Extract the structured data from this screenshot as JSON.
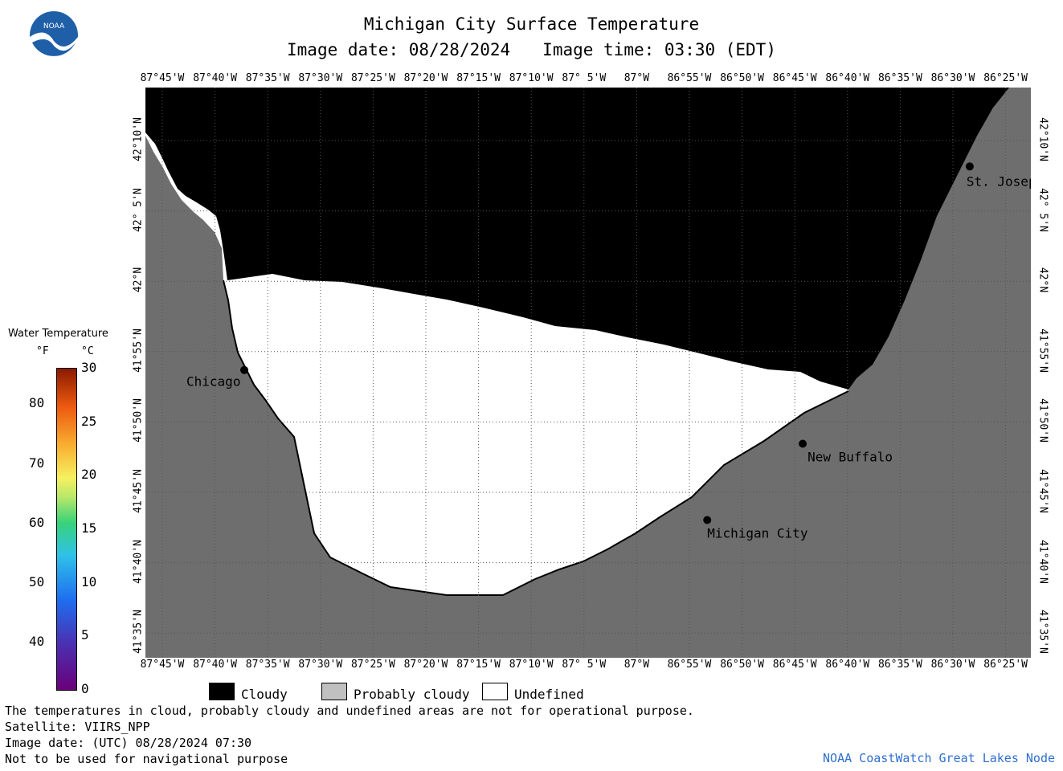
{
  "header": {
    "title": "Michigan City Surface Temperature",
    "image_date": "Image date: 08/28/2024",
    "image_time": "Image time: 03:30 (EDT)"
  },
  "logo": {
    "text": "NOAA",
    "icon": "noaa-logo-icon"
  },
  "map": {
    "lon_labels": [
      "87°45'W",
      "87°40'W",
      "87°35'W",
      "87°30'W",
      "87°25'W",
      "87°20'W",
      "87°15'W",
      "87°10'W",
      "87° 5'W",
      "87°W",
      "86°55'W",
      "86°50'W",
      "86°45'W",
      "86°40'W",
      "86°35'W",
      "86°30'W",
      "86°25'W"
    ],
    "lat_labels": [
      "42°10'N",
      "42° 5'N",
      "42°N",
      "41°55'N",
      "41°50'N",
      "41°45'N",
      "41°40'N",
      "41°35'N"
    ],
    "cities": [
      {
        "name": "Chicago",
        "lon": -87.627,
        "lat": 41.878
      },
      {
        "name": "Michigan City",
        "lon": -86.895,
        "lat": 41.707
      },
      {
        "name": "New Buffalo",
        "lon": -86.744,
        "lat": 41.794
      },
      {
        "name": "St. Joseph",
        "lon": -86.48,
        "lat": 42.11
      }
    ],
    "colors": {
      "cloudy": "#000000",
      "land": "#6e6e6e",
      "undefined": "#ffffff",
      "grid": "#555555"
    }
  },
  "legend": {
    "title": "Water Temperature",
    "unit_f": "°F",
    "unit_c": "°C",
    "f_ticks": [
      "40",
      "50",
      "60",
      "70",
      "80"
    ],
    "c_ticks": [
      "0",
      "5",
      "10",
      "15",
      "20",
      "25",
      "30"
    ]
  },
  "key": {
    "cloudy": "Cloudy",
    "probably_cloudy": "Probably cloudy",
    "undefined": "Undefined"
  },
  "footer": {
    "note": "The temperatures in cloud, probably cloudy and undefined areas are not for operational purpose.",
    "satellite": "Satellite: VIIRS_NPP",
    "utc_date": "Image date: (UTC) 08/28/2024  07:30",
    "nav": "Not to be used for navigational purpose",
    "credit": "NOAA CoastWatch Great Lakes Node"
  }
}
